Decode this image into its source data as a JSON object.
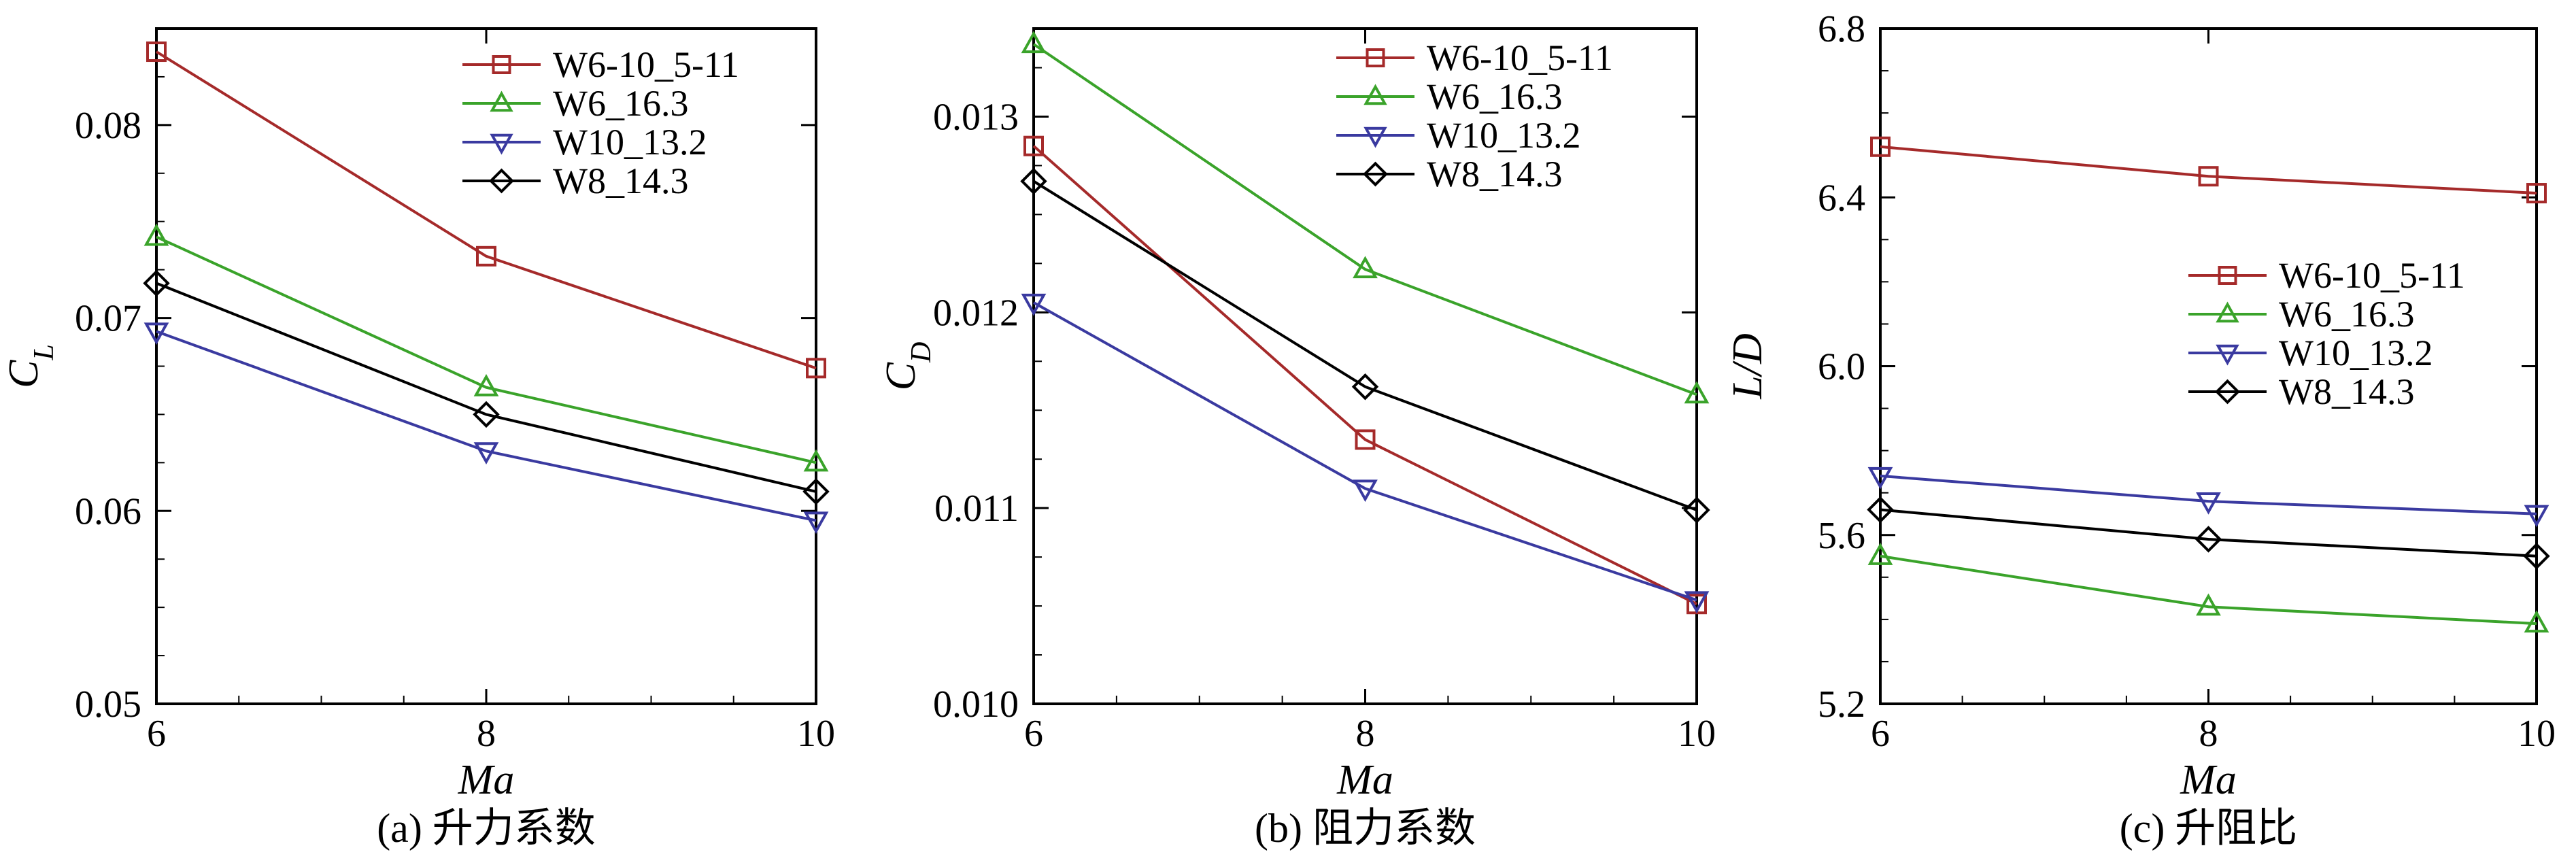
{
  "chart_data": [
    {
      "type": "line",
      "caption": "(a) 升力系数",
      "xlabel": "Ma",
      "ylabel": {
        "main": "C",
        "sub": "L"
      },
      "x": [
        6,
        8,
        10
      ],
      "xticks": [
        "6",
        "8",
        "10"
      ],
      "xlim": [
        6,
        10
      ],
      "ylim": [
        0.05,
        0.085
      ],
      "yticks": [
        0.05,
        0.06,
        0.07,
        0.08
      ],
      "ytick_labels": [
        "0.05",
        "0.06",
        "0.07",
        "0.08"
      ],
      "legend_position": "top-right",
      "series": [
        {
          "name": "W6-10_5-11",
          "color": "#a52a2a",
          "marker": "square",
          "values": [
            0.0838,
            0.0732,
            0.0674
          ]
        },
        {
          "name": "W6_16.3",
          "color": "#3aa32a",
          "marker": "triangle-up",
          "values": [
            0.0742,
            0.0664,
            0.0625
          ]
        },
        {
          "name": "W10_13.2",
          "color": "#3a3aa0",
          "marker": "triangle-down",
          "values": [
            0.0693,
            0.0631,
            0.0595
          ]
        },
        {
          "name": "W8_14.3",
          "color": "#000000",
          "marker": "diamond",
          "values": [
            0.0718,
            0.065,
            0.061
          ]
        }
      ]
    },
    {
      "type": "line",
      "caption": "(b) 阻力系数",
      "xlabel": "Ma",
      "ylabel": {
        "main": "C",
        "sub": "D"
      },
      "x": [
        6,
        8,
        10
      ],
      "xticks": [
        "6",
        "8",
        "10"
      ],
      "xlim": [
        6,
        10
      ],
      "ylim": [
        0.01,
        0.01345
      ],
      "yticks": [
        0.01,
        0.011,
        0.012,
        0.013
      ],
      "ytick_labels": [
        "0.010",
        "0.011",
        "0.012",
        "0.013"
      ],
      "legend_position": "top-right",
      "series": [
        {
          "name": "W6-10_5-11",
          "color": "#a52a2a",
          "marker": "square",
          "values": [
            0.01285,
            0.01135,
            0.01051
          ]
        },
        {
          "name": "W6_16.3",
          "color": "#3aa32a",
          "marker": "triangle-up",
          "values": [
            0.01337,
            0.01222,
            0.01158
          ]
        },
        {
          "name": "W10_13.2",
          "color": "#3a3aa0",
          "marker": "triangle-down",
          "values": [
            0.01205,
            0.0111,
            0.01053
          ]
        },
        {
          "name": "W8_14.3",
          "color": "#000000",
          "marker": "diamond",
          "values": [
            0.01267,
            0.01162,
            0.01099
          ]
        }
      ]
    },
    {
      "type": "line",
      "caption": "(c) 升阻比",
      "xlabel": "Ma",
      "ylabel": {
        "main": "L/D",
        "sub": ""
      },
      "x": [
        6,
        8,
        10
      ],
      "xticks": [
        "6",
        "8",
        "10"
      ],
      "xlim": [
        6,
        10
      ],
      "ylim": [
        5.2,
        6.8
      ],
      "yticks": [
        5.2,
        5.6,
        6.0,
        6.4,
        6.8
      ],
      "ytick_labels": [
        "5.2",
        "5.6",
        "6.0",
        "6.4",
        "6.8"
      ],
      "legend_position": "center-right",
      "series": [
        {
          "name": "W6-10_5-11",
          "color": "#a52a2a",
          "marker": "square",
          "values": [
            6.52,
            6.45,
            6.41
          ]
        },
        {
          "name": "W6_16.3",
          "color": "#3aa32a",
          "marker": "triangle-up",
          "values": [
            5.55,
            5.43,
            5.39
          ]
        },
        {
          "name": "W10_13.2",
          "color": "#3a3aa0",
          "marker": "triangle-down",
          "values": [
            5.74,
            5.68,
            5.65
          ]
        },
        {
          "name": "W8_14.3",
          "color": "#000000",
          "marker": "diamond",
          "values": [
            5.66,
            5.59,
            5.55
          ]
        }
      ]
    }
  ]
}
